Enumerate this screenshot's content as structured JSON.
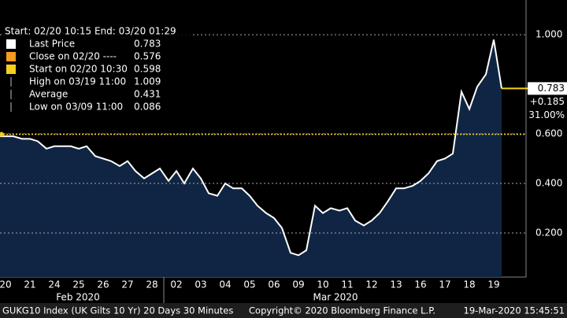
{
  "chart_data": {
    "type": "area",
    "header": "Start: 02/20 10:15 End: 03/20 01:29",
    "legend_items": [
      {
        "label": "Last Price",
        "value": 0.783,
        "color": "#ffffff"
      },
      {
        "label": "Close on 02/20 ----",
        "value": 0.576,
        "color": "#f39c1e"
      },
      {
        "label": "Start on 02/20 10:30",
        "value": 0.598,
        "color": "#f5cf1c"
      },
      {
        "label": "High on 03/19 11:00",
        "value": 1.009,
        "color": "#bbbbbb"
      },
      {
        "label": "Average",
        "value": 0.431,
        "color": "#bbbbbb"
      },
      {
        "label": "Low on 03/09 11:00",
        "value": 0.086,
        "color": "#bbbbbb"
      }
    ],
    "categories": [
      null,
      "20",
      null,
      null,
      "21",
      null,
      null,
      "24",
      null,
      null,
      "25",
      null,
      null,
      "26",
      null,
      null,
      "27",
      null,
      null,
      "28",
      null,
      null,
      "02",
      null,
      null,
      "03",
      null,
      null,
      "04",
      null,
      null,
      "05",
      null,
      null,
      "06",
      null,
      null,
      "09",
      null,
      null,
      "10",
      null,
      null,
      "11",
      null,
      null,
      "12",
      null,
      null,
      "13",
      null,
      null,
      "16",
      null,
      null,
      "17",
      null,
      null,
      "18",
      null,
      null,
      "19",
      null
    ],
    "x_groups": [
      "Feb 2020",
      "Mar 2020"
    ],
    "series": [
      {
        "name": "Last Price",
        "color": "#ffffff",
        "fill": "#0f2543",
        "values": [
          0.59,
          0.59,
          0.59,
          0.58,
          0.58,
          0.57,
          0.54,
          0.55,
          0.55,
          0.55,
          0.54,
          0.55,
          0.51,
          0.5,
          0.49,
          0.47,
          0.49,
          0.45,
          0.42,
          0.44,
          0.46,
          0.41,
          0.45,
          0.4,
          0.46,
          0.42,
          0.36,
          0.35,
          0.4,
          0.38,
          0.38,
          0.35,
          0.31,
          0.28,
          0.26,
          0.22,
          0.12,
          0.11,
          0.13,
          0.31,
          0.28,
          0.3,
          0.29,
          0.3,
          0.25,
          0.23,
          0.25,
          0.28,
          0.33,
          0.38,
          0.38,
          0.39,
          0.41,
          0.44,
          0.49,
          0.5,
          0.52,
          0.77,
          0.7,
          0.79,
          0.84,
          0.98,
          0.783
        ]
      }
    ],
    "ylim": [
      0.022,
      1.14
    ],
    "yticks": [
      {
        "value": 0.2,
        "label": "0.200"
      },
      {
        "value": 0.4,
        "label": "0.400"
      },
      {
        "value": 0.6,
        "label": "0.600"
      },
      {
        "value": 1.0,
        "label": "1.000"
      }
    ],
    "grid": true,
    "price_tag": [
      "0.783",
      "+0.185",
      "31.00%"
    ],
    "footer": [
      "GUKG10 Index (UK Gilts 10 Yr) 20 Days 30 Minutes",
      "Copyright© 2020 Bloomberg Finance L.P.",
      "19-Mar-2020 15:45:51"
    ]
  }
}
